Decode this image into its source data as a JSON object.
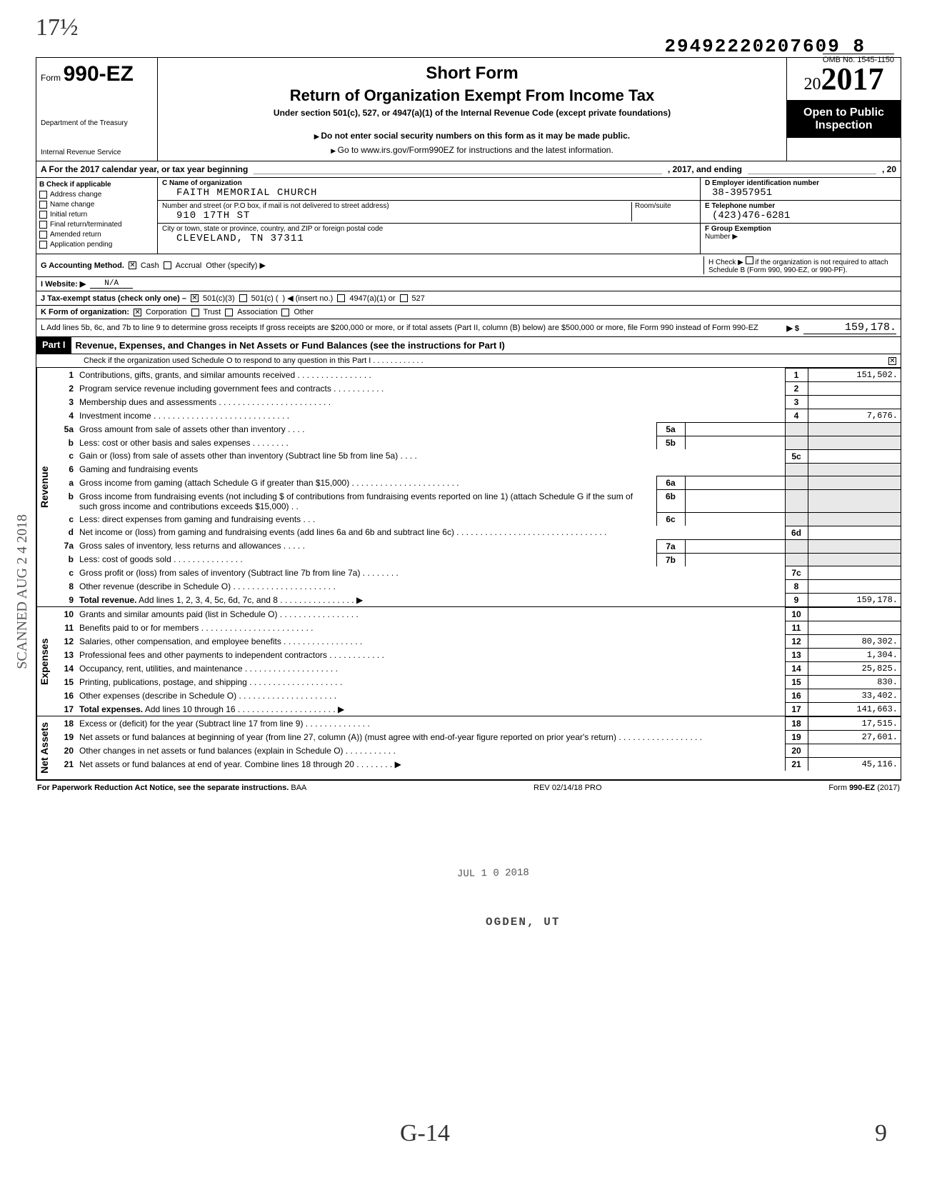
{
  "doc_number": "29492220207609 8",
  "omb": "OMB No. 1545-1150",
  "form_prefix": "Form",
  "form_number": "990-EZ",
  "dept1": "Department of the Treasury",
  "dept2": "Internal Revenue Service",
  "title_short": "Short Form",
  "title_main": "Return of Organization Exempt From Income Tax",
  "title_sub": "Under section 501(c), 527, or 4947(a)(1) of the Internal Revenue Code (except private foundations)",
  "title_note": "Do not enter social security numbers on this form as it may be made public.",
  "title_link": "Go to www.irs.gov/Form990EZ for instructions and the latest information.",
  "year_label": "2017",
  "year_prefix": "20",
  "open_public1": "Open to Public",
  "open_public2": "Inspection",
  "row_a_pre": "A  For the 2017 calendar year, or tax year beginning",
  "row_a_mid": ", 2017, and ending",
  "row_a_end": ", 20",
  "b_header": "B  Check if applicable",
  "b_items": [
    "Address change",
    "Name change",
    "Initial return",
    "Final return/terminated",
    "Amended return",
    "Application pending"
  ],
  "c_header": "C  Name of organization",
  "org_name": "FAITH MEMORIAL CHURCH",
  "addr_label": "Number and street (or P.O box, if mail is not delivered to street address)",
  "room_label": "Room/suite",
  "addr": "910 17TH ST",
  "city_label": "City or town, state or province, country, and ZIP or foreign postal code",
  "city": "CLEVELAND, TN 37311",
  "d_label": "D Employer identification number",
  "ein": "38-3957951",
  "e_label": "E Telephone number",
  "phone": "(423)476-6281",
  "f_label": "F Group Exemption",
  "f_label2": "Number ▶",
  "g_label": "G Accounting Method.",
  "g_cash": "Cash",
  "g_accrual": "Accrual",
  "g_other": "Other (specify) ▶",
  "h_text1": "H Check ▶",
  "h_text2": "if the organization is not required to attach Schedule B (Form 990, 990-EZ, or 990-PF).",
  "i_label": "I  Website: ▶",
  "i_value": "N/A",
  "j_label": "J Tax-exempt status (check only one) –",
  "j_501c3": "501(c)(3)",
  "j_501c": "501(c) (",
  "j_insert": ") ◀ (insert no.)",
  "j_4947": "4947(a)(1) or",
  "j_527": "527",
  "k_label": "K Form of organization:",
  "k_corp": "Corporation",
  "k_trust": "Trust",
  "k_assoc": "Association",
  "k_other": "Other",
  "l_text": "L Add lines 5b, 6c, and 7b to line 9 to determine gross receipts  If gross receipts are $200,000 or more, or if total assets (Part II, column (B) below) are $500,000 or more, file Form 990 instead of Form 990-EZ",
  "l_arrow": "▶  $",
  "l_amount": "159,178.",
  "part1_label": "Part I",
  "part1_title": "Revenue, Expenses, and Changes in Net Assets or Fund Balances (see the instructions for Part I)",
  "part1_check": "Check if the organization used Schedule O to respond to any question in this Part I . . . . . . . . . . . .",
  "vert_revenue": "Revenue",
  "vert_expenses": "Expenses",
  "vert_netassets": "Net Assets",
  "lines": {
    "1": {
      "n": "1",
      "d": "Contributions, gifts, grants, and similar amounts received . . . . . . . . . . . . . . . .",
      "bn": "1",
      "v": "151,502."
    },
    "2": {
      "n": "2",
      "d": "Program service revenue including government fees and contracts  . . . . . . . . . . .",
      "bn": "2",
      "v": ""
    },
    "3": {
      "n": "3",
      "d": "Membership dues and assessments . . . . . . . . . . . . . . . . . . . . . . . .",
      "bn": "3",
      "v": ""
    },
    "4": {
      "n": "4",
      "d": "Investment income  . . . . . . . . . . . . . . . . . . . . . . . . . . . . .",
      "bn": "4",
      "v": "7,676."
    },
    "5a": {
      "n": "5a",
      "d": "Gross amount from sale of assets other than inventory  . . . .",
      "ib": "5a"
    },
    "5b": {
      "n": "b",
      "d": "Less: cost or other basis and sales expenses . . . . . . . .",
      "ib": "5b"
    },
    "5c": {
      "n": "c",
      "d": "Gain or (loss) from sale of assets other than inventory (Subtract line 5b from line 5a) . . . .",
      "bn": "5c",
      "v": ""
    },
    "6": {
      "n": "6",
      "d": "Gaming and fundraising events"
    },
    "6a": {
      "n": "a",
      "d": "Gross income from gaming (attach Schedule G if greater than $15,000) . . . . . . . . . . . . . . . . . . . . . . .",
      "ib": "6a"
    },
    "6b": {
      "n": "b",
      "d": "Gross income from fundraising events (not including  $                         of contributions from fundraising events reported on line 1) (attach Schedule G if the sum of such gross income and contributions exceeds $15,000) . .",
      "ib": "6b"
    },
    "6c": {
      "n": "c",
      "d": "Less: direct expenses from gaming and fundraising events  . . .",
      "ib": "6c"
    },
    "6d": {
      "n": "d",
      "d": "Net income or (loss) from gaming and fundraising events (add lines 6a and 6b and subtract line 6c)  . . . . . . . . . . . . . . . . . . . . . . . . . . . . . . . .",
      "bn": "6d",
      "v": ""
    },
    "7a": {
      "n": "7a",
      "d": "Gross sales of inventory, less returns and allowances . . . . .",
      "ib": "7a"
    },
    "7b": {
      "n": "b",
      "d": "Less: cost of goods sold  . . . . . . . . . . . . . . .",
      "ib": "7b"
    },
    "7c": {
      "n": "c",
      "d": "Gross profit or (loss) from sales of inventory (Subtract line 7b from line 7a)  . . . . . . . .",
      "bn": "7c",
      "v": ""
    },
    "8": {
      "n": "8",
      "d": "Other revenue (describe in Schedule O) . . . . . . . . . . . . . . . . . . . . . .",
      "bn": "8",
      "v": ""
    },
    "9": {
      "n": "9",
      "d": "Total revenue. Add lines 1, 2, 3, 4, 5c, 6d, 7c, and 8  . . . . . . . . . . . . . . . . ▶",
      "bn": "9",
      "v": "159,178.",
      "bold": true
    },
    "10": {
      "n": "10",
      "d": "Grants and similar amounts paid (list in Schedule O)  . . . . . . . . . . . . . . . . .",
      "bn": "10",
      "v": ""
    },
    "11": {
      "n": "11",
      "d": "Benefits paid to or for members  . . . . . . . . . . . . . . . . . . . . . . . .",
      "bn": "11",
      "v": ""
    },
    "12": {
      "n": "12",
      "d": "Salaries, other compensation, and employee benefits . . . . . . . . . . . . . . . . .",
      "bn": "12",
      "v": "80,302."
    },
    "13": {
      "n": "13",
      "d": "Professional fees and other payments to independent contractors . . . . . . . . . . . .",
      "bn": "13",
      "v": "1,304."
    },
    "14": {
      "n": "14",
      "d": "Occupancy, rent, utilities, and maintenance  . . . . . . . . . . . . . . . . . . . .",
      "bn": "14",
      "v": "25,825."
    },
    "15": {
      "n": "15",
      "d": "Printing, publications, postage, and shipping . . . . . . . . . . . . . . . . . . . .",
      "bn": "15",
      "v": "830."
    },
    "16": {
      "n": "16",
      "d": "Other expenses (describe in Schedule O)  . . . . . . . . . . . . . . . . . . . . .",
      "bn": "16",
      "v": "33,402."
    },
    "17": {
      "n": "17",
      "d": "Total expenses. Add lines 10 through 16 . . . . . . . . . . . . . . . . . . . . . ▶",
      "bn": "17",
      "v": "141,663.",
      "bold": true
    },
    "18": {
      "n": "18",
      "d": "Excess or (deficit) for the year (Subtract line 17 from line 9)  . . . . . . . . . . . . . .",
      "bn": "18",
      "v": "17,515."
    },
    "19": {
      "n": "19",
      "d": "Net assets or fund balances at beginning of year (from line 27, column (A)) (must agree with end-of-year figure reported on prior year's return)  . . . . . . . . . . . . . . . . . .",
      "bn": "19",
      "v": "27,601."
    },
    "20": {
      "n": "20",
      "d": "Other changes in net assets or fund balances (explain in Schedule O) . . . . . . . . . . .",
      "bn": "20",
      "v": ""
    },
    "21": {
      "n": "21",
      "d": "Net assets or fund balances at end of year. Combine lines 18 through 20  . . . . . . . . ▶",
      "bn": "21",
      "v": "45,116."
    }
  },
  "footer_left": "For Paperwork Reduction Act Notice, see the separate instructions.",
  "footer_baa": "BAA",
  "footer_rev": "REV 02/14/18 PRO",
  "footer_right": "Form 990-EZ (2017)",
  "watermark": "SCANNED AUG 2 4 2018",
  "hw_top": "17½",
  "hw_g14": "G-14",
  "hw_9": "9",
  "stamp1": "JUL 1 0 2018",
  "stamp2": "OGDEN, UT"
}
